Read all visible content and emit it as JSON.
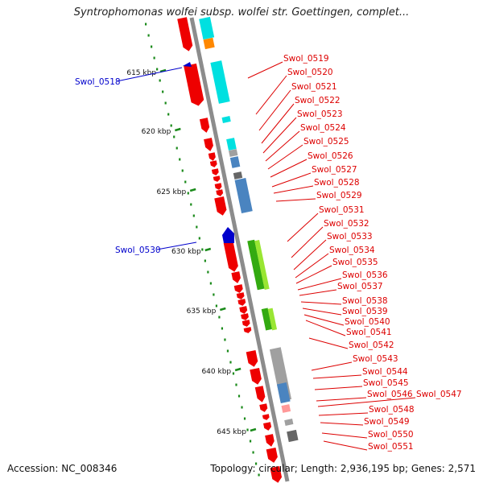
{
  "header": {
    "title": "Syntrophomonas wolfei subsp. wolfei str. Goettingen, complet..."
  },
  "footer": {
    "accession": "Accession: NC_008346",
    "stats": "Topology: circular; Length: 2,936,195 bp; Genes: 2,571"
  },
  "colors": {
    "backbone": "#8c8c8c",
    "scale_dots": "#1a8a1a",
    "label_forward": "#0000cc",
    "label_reverse": "#dd0000",
    "cds": "#ee0000",
    "cyan": "#00e0e0",
    "steelblue": "#4a84c0",
    "green": "#33aa11",
    "lightgreen": "#99e633",
    "grey": "#a0a0a0",
    "darkgrey": "#666666",
    "orange": "#ff8800",
    "pink": "#ff9999"
  },
  "scale": {
    "ticks": [
      "615 kbp",
      "620 kbp",
      "625 kbp",
      "630 kbp",
      "635 kbp",
      "640 kbp",
      "645 kbp"
    ]
  },
  "genes_forward": [
    "Swol_0518",
    "Swol_0530"
  ],
  "genes_reverse": [
    "Swol_0519",
    "Swol_0520",
    "Swol_0521",
    "Swol_0522",
    "Swol_0523",
    "Swol_0524",
    "Swol_0525",
    "Swol_0526",
    "Swol_0527",
    "Swol_0528",
    "Swol_0529",
    "Swol_0531",
    "Swol_0532",
    "Swol_0533",
    "Swol_0534",
    "Swol_0535",
    "Swol_0536",
    "Swol_0537",
    "Swol_0538",
    "Swol_0539",
    "Swol_0540",
    "Swol_0541",
    "Swol_0542",
    "Swol_0543",
    "Swol_0544",
    "Swol_0545",
    "Swol_0546",
    "Swol_0547",
    "Swol_0548",
    "Swol_0549",
    "Swol_0550",
    "Swol_0551"
  ]
}
